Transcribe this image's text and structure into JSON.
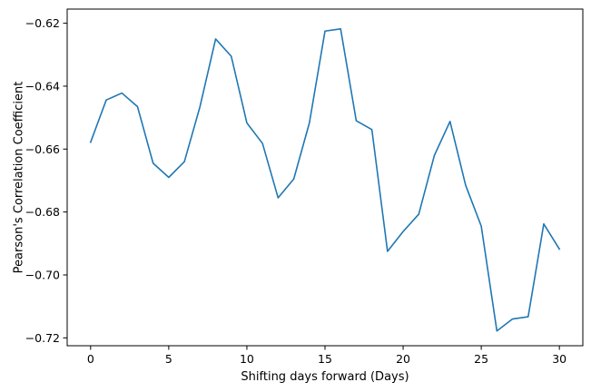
{
  "chart_data": {
    "type": "line",
    "xlabel": "Shifting days forward (Days)",
    "ylabel": "Pearson's Correlation Coefficient",
    "xlim": [
      -1.5,
      31.5
    ],
    "ylim": [
      -0.7225,
      -0.6155
    ],
    "xticks": [
      0,
      5,
      10,
      15,
      20,
      25,
      30
    ],
    "yticks": [
      -0.62,
      -0.64,
      -0.66,
      -0.68,
      -0.7,
      -0.72
    ],
    "grid": false,
    "line_color": "#1f77b4",
    "series": [
      {
        "x": [
          0,
          1,
          2,
          3,
          4,
          5,
          6,
          7,
          8,
          9,
          10,
          11,
          12,
          13,
          14,
          15,
          16,
          17,
          18,
          19,
          20,
          21,
          22,
          23,
          24,
          25,
          26,
          27,
          28,
          29,
          30
        ],
        "values": [
          -0.6578,
          -0.6444,
          -0.6422,
          -0.6465,
          -0.6645,
          -0.669,
          -0.664,
          -0.6465,
          -0.625,
          -0.6305,
          -0.6517,
          -0.6582,
          -0.6755,
          -0.6695,
          -0.6517,
          -0.6225,
          -0.6218,
          -0.651,
          -0.6538,
          -0.6925,
          -0.6862,
          -0.6807,
          -0.662,
          -0.6512,
          -0.6715,
          -0.6845,
          -0.7178,
          -0.714,
          -0.7133,
          -0.6838,
          -0.6918
        ]
      }
    ]
  }
}
